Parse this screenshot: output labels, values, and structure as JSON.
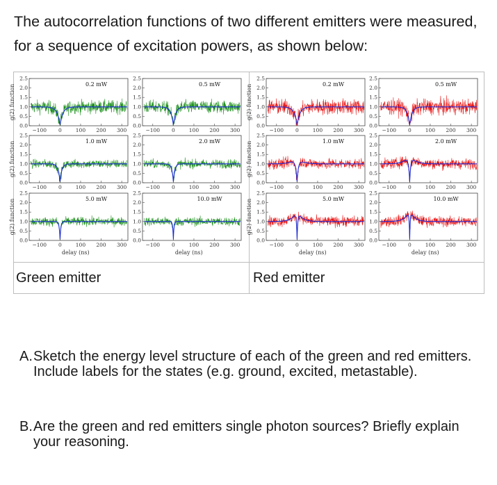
{
  "intro": "The autocorrelation functions of two different emitters were measured, for a sequence of excitation powers, as shown below:",
  "captions": {
    "green": "Green emitter",
    "red": "Red emitter"
  },
  "colors": {
    "green_noise": "#1a8f1a",
    "red_noise": "#e81010",
    "fit": "#1a2bd6"
  },
  "chart_data": [
    {
      "emitter": "Green emitter",
      "type": "line",
      "xlabel": "delay (ns)",
      "ylabel": "g(2) function",
      "xlim": [
        -150,
        330
      ],
      "ylim": [
        0.0,
        2.5
      ],
      "xticks": [
        "−100",
        "0",
        "100",
        "200",
        "300"
      ],
      "yticks": [
        "0.0",
        "0.5",
        "1.0",
        "1.5",
        "2.0",
        "2.5"
      ],
      "panels": [
        {
          "title": "0.2 mW",
          "baseline": 1.0,
          "dip": 0.05,
          "width": 14,
          "bump": 0.0
        },
        {
          "title": "0.5 mW",
          "baseline": 1.0,
          "dip": 0.05,
          "width": 12,
          "bump": 0.0
        },
        {
          "title": "1.0 mW",
          "baseline": 1.0,
          "dip": 0.05,
          "width": 9,
          "bump": 0.0
        },
        {
          "title": "2.0 mW",
          "baseline": 1.0,
          "dip": 0.05,
          "width": 7,
          "bump": 0.0
        },
        {
          "title": "5.0 mW",
          "baseline": 1.0,
          "dip": 0.05,
          "width": 4,
          "bump": 0.0
        },
        {
          "title": "10.0 mW",
          "baseline": 1.0,
          "dip": 0.05,
          "width": 3,
          "bump": 0.0
        }
      ]
    },
    {
      "emitter": "Red emitter",
      "type": "line",
      "xlabel": "delay (ns)",
      "ylabel": "g(2) function",
      "xlim": [
        -150,
        330
      ],
      "ylim": [
        0.0,
        2.5
      ],
      "xticks": [
        "−100",
        "0",
        "100",
        "200",
        "300"
      ],
      "yticks": [
        "0.0",
        "0.5",
        "1.0",
        "1.5",
        "2.0",
        "2.5"
      ],
      "panels": [
        {
          "title": "0.2 mW",
          "baseline": 1.0,
          "dip": 0.05,
          "width": 14,
          "bump": 0.0
        },
        {
          "title": "0.5 mW",
          "baseline": 1.0,
          "dip": 0.05,
          "width": 12,
          "bump": 0.0
        },
        {
          "title": "1.0 mW",
          "baseline": 1.0,
          "dip": 0.05,
          "width": 9,
          "bump": 0.5
        },
        {
          "title": "2.0 mW",
          "baseline": 1.0,
          "dip": 0.05,
          "width": 7,
          "bump": 0.6
        },
        {
          "title": "5.0 mW",
          "baseline": 1.0,
          "dip": 0.05,
          "width": 4,
          "bump": 0.6
        },
        {
          "title": "10.0 mW",
          "baseline": 1.0,
          "dip": 0.05,
          "width": 3,
          "bump": 0.6
        }
      ]
    }
  ],
  "questions": [
    {
      "label": "A.",
      "text": "Sketch the energy level structure of each of the green and red emitters. Include labels for the states (e.g. ground, excited, metastable)."
    },
    {
      "label": "B.",
      "text": "Are the green and red emitters single photon sources? Briefly explain your reasoning."
    }
  ]
}
